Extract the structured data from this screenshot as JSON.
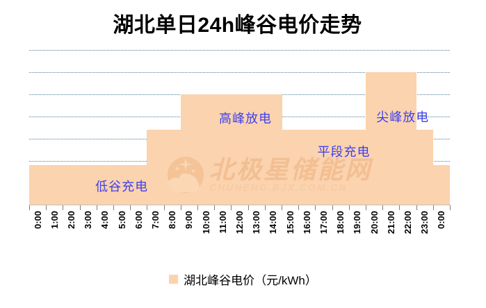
{
  "title": "湖北单日24h峰谷电价走势",
  "legend": {
    "label": "湖北峰谷电价（元/kWh）"
  },
  "watermark": {
    "text": "北极星储能网",
    "subtext": "CHUNENG.BJX.COM.CN",
    "logo": "polar-star-circle"
  },
  "colors": {
    "bar": "#FBD3AE",
    "gridline": "#4C7C9B",
    "annotation_text": "#4040EE",
    "axis_line": "#BFBFBF",
    "tick": "#808080",
    "x_label": "#000000",
    "title": "#000000",
    "watermark_text": "#F2BF93"
  },
  "chart_data": {
    "type": "bar",
    "title": "湖北单日24h峰谷电价走势",
    "series_name": "湖北峰谷电价（元/kWh）",
    "xlabel": "",
    "ylabel": "",
    "categories": [
      "0:00",
      "1:00",
      "2:00",
      "3:00",
      "4:00",
      "5:00",
      "6:00",
      "7:00",
      "8:00",
      "9:00",
      "10:00",
      "11:00",
      "12:00",
      "13:00",
      "14:00",
      "15:00",
      "16:00",
      "17:00",
      "18:00",
      "19:00",
      "20:00",
      "21:00",
      "22:00",
      "23:00",
      "0:00"
    ],
    "values": [
      0.36,
      0.36,
      0.36,
      0.36,
      0.36,
      0.36,
      0.36,
      0.68,
      0.68,
      1.0,
      1.0,
      1.0,
      1.0,
      1.0,
      1.0,
      0.68,
      0.68,
      0.68,
      0.68,
      0.68,
      1.2,
      1.2,
      1.2,
      0.68,
      0.36
    ],
    "ylim": [
      0,
      1.4
    ],
    "gridline_step": 0.2,
    "visible_gridlines": [
      0.4,
      0.6,
      0.8,
      1.0,
      1.2,
      1.4
    ],
    "grid": "dotted-horizontal",
    "y_axis_labels_visible": false,
    "legend_position": "bottom",
    "bar_gap": 0,
    "annotations": [
      {
        "label": "低谷充电",
        "x_hour": 5.5,
        "y_value": 0.175
      },
      {
        "label": "高峰放电",
        "x_hour": 12.85,
        "y_value": 0.79
      },
      {
        "label": "平段充电",
        "x_hour": 18.7,
        "y_value": 0.49
      },
      {
        "label": "尖峰放电",
        "x_hour": 22.2,
        "y_value": 0.8
      }
    ],
    "price_levels": [
      {
        "period": "0:00-7:00",
        "level": "低谷充电",
        "value": 0.36
      },
      {
        "period": "7:00-9:00",
        "level": "平段充电",
        "value": 0.68
      },
      {
        "period": "9:00-15:00",
        "level": "高峰放电",
        "value": 1.0
      },
      {
        "period": "15:00-20:00",
        "level": "平段充电",
        "value": 0.68
      },
      {
        "period": "20:00-23:00",
        "level": "尖峰放电",
        "value": 1.2
      },
      {
        "period": "23:00-24:00",
        "level": "平段充电",
        "value": 0.68
      },
      {
        "period": "24:00",
        "level": "低谷充电",
        "value": 0.36
      }
    ]
  }
}
